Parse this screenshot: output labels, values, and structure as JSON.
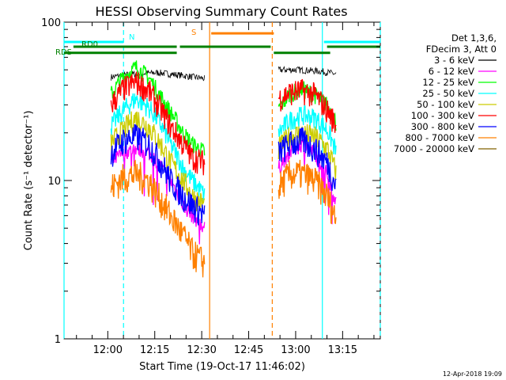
{
  "chart_data": {
    "type": "line",
    "title": "HESSI Observing Summary Count Rates",
    "xlabel": "Start Time (19-Oct-17 11:46:02)",
    "ylabel": "Count Rate (s⁻¹ detector⁻¹)",
    "yscale": "log",
    "ylim": [
      1,
      100
    ],
    "xlim_minutes_after_start": [
      0,
      101
    ],
    "x_tick_labels": [
      "12:00",
      "12:15",
      "12:30",
      "12:45",
      "13:00",
      "13:15"
    ],
    "y_tick_labels": [
      "1",
      "10",
      "100"
    ],
    "legend_header": [
      "Det 1,3,6,",
      "FDecim 3, Att 0"
    ],
    "grid": false,
    "legend_position": "right",
    "footer_date": "12-Apr-2018 19:09",
    "flags": [
      {
        "label": "N",
        "color": "#00ffff",
        "level": 75,
        "segments": [
          [
            0,
            19
          ],
          [
            83,
            101
          ]
        ]
      },
      {
        "label": "RD0",
        "color": "#008000",
        "level": 70,
        "segments": [
          [
            3,
            36
          ],
          [
            37,
            66
          ],
          [
            84,
            101
          ]
        ]
      },
      {
        "label": "RDS",
        "color": "#008000",
        "level": 64,
        "segments": [
          [
            0,
            36
          ],
          [
            67,
            85
          ]
        ]
      },
      {
        "label": "S",
        "color": "#ff8000",
        "level": 85,
        "segments": [
          [
            47,
            67
          ]
        ]
      }
    ],
    "markers": [
      {
        "color": "#00ffff",
        "style": "solid",
        "x": 0
      },
      {
        "color": "#00ffff",
        "style": "dashed",
        "x": 19
      },
      {
        "color": "#ff8000",
        "style": "solid",
        "x": 46.5
      },
      {
        "color": "#ff8000",
        "style": "dashed",
        "x": 66.5
      },
      {
        "color": "#00ffff",
        "style": "solid",
        "x": 82.5
      },
      {
        "color": "#00ffff",
        "style": "dashed",
        "x": 101
      }
    ],
    "series": [
      {
        "name": "3 - 6 keV",
        "color": "#000000",
        "x": [
          15,
          22,
          30,
          38,
          45,
          68.5,
          75,
          82,
          87
        ],
        "y": [
          45,
          47,
          48,
          46,
          44,
          50,
          50,
          49,
          47
        ]
      },
      {
        "name": "6 - 12 keV",
        "color": "#ff00ff",
        "x": [
          15,
          19,
          23,
          27,
          30,
          34,
          38,
          41,
          45,
          68.5,
          72,
          76,
          80,
          84,
          87
        ],
        "y": [
          13,
          15,
          16,
          15,
          13,
          10,
          7,
          6,
          5,
          12,
          15,
          17,
          15,
          11,
          7
        ]
      },
      {
        "name": "12 - 25 keV",
        "color": "#00ff00",
        "x": [
          15,
          19,
          23,
          27,
          30,
          34,
          38,
          41,
          45,
          68.5,
          72,
          76,
          80,
          84,
          87
        ],
        "y": [
          35,
          45,
          52,
          45,
          36,
          27,
          20,
          17,
          15,
          28,
          35,
          38,
          35,
          30,
          23
        ]
      },
      {
        "name": "25 - 50 keV",
        "color": "#00ffff",
        "x": [
          15,
          19,
          23,
          27,
          30,
          34,
          38,
          41,
          45,
          68.5,
          72,
          76,
          80,
          84,
          87
        ],
        "y": [
          22,
          28,
          33,
          29,
          24,
          17,
          12,
          10,
          8,
          20,
          24,
          26,
          25,
          21,
          15
        ]
      },
      {
        "name": "50 - 100 keV",
        "color": "#cccc00",
        "x": [
          15,
          19,
          23,
          27,
          30,
          34,
          38,
          41,
          45,
          68.5,
          72,
          76,
          80,
          84,
          87
        ],
        "y": [
          17,
          21,
          25,
          22,
          18,
          13,
          10,
          8,
          7,
          16,
          19,
          20,
          19,
          16,
          11
        ]
      },
      {
        "name": "100 - 300 keV",
        "color": "#ff0000",
        "x": [
          15,
          19,
          23,
          27,
          30,
          34,
          38,
          41,
          45,
          68.5,
          72,
          76,
          80,
          84,
          87
        ],
        "y": [
          30,
          38,
          42,
          37,
          30,
          22,
          17,
          14,
          13,
          33,
          36,
          37,
          35,
          28,
          22
        ]
      },
      {
        "name": "300 - 800 keV",
        "color": "#0000ff",
        "x": [
          15,
          19,
          23,
          27,
          30,
          34,
          38,
          41,
          45,
          68.5,
          72,
          76,
          80,
          84,
          87
        ],
        "y": [
          15,
          18,
          19,
          17,
          14,
          10,
          8,
          7,
          6,
          15,
          17,
          18,
          16,
          13,
          9
        ]
      },
      {
        "name": "800 - 7000 keV",
        "color": "#ff8000",
        "x": [
          15,
          19,
          23,
          27,
          30,
          34,
          38,
          41,
          45,
          68.5,
          72,
          76,
          80,
          84,
          87
        ],
        "y": [
          9,
          10.5,
          11,
          10,
          8,
          6,
          4.5,
          3.5,
          3,
          9,
          11,
          11,
          10,
          8,
          5.5
        ]
      },
      {
        "name": "7000 - 20000 keV",
        "color": "#806000",
        "x": [],
        "y": []
      }
    ]
  }
}
